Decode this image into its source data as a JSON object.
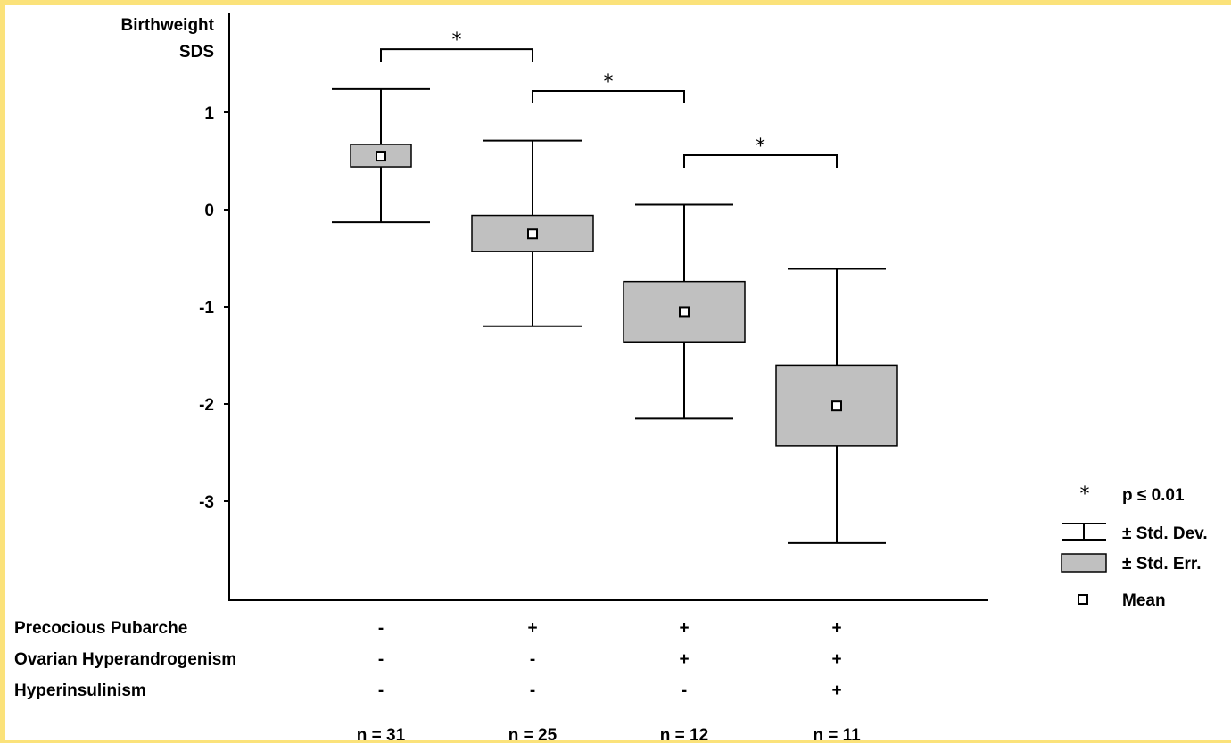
{
  "chart_data": {
    "type": "box",
    "ylabel": [
      "Birthweight",
      "SDS"
    ],
    "ylim": [
      -3.8,
      2.0
    ],
    "yticks": [
      1,
      0,
      -1,
      -2,
      -3
    ],
    "ytick_labels": [
      "1",
      "0",
      "-1",
      "-2",
      "-3"
    ],
    "groups": [
      {
        "mean": 0.55,
        "se_low": 0.44,
        "se_high": 0.67,
        "sd_low": -0.13,
        "sd_high": 1.24,
        "n_label": "n = 31",
        "factors": [
          "-",
          "-",
          "-"
        ]
      },
      {
        "mean": -0.25,
        "se_low": -0.43,
        "se_high": -0.06,
        "sd_low": -1.2,
        "sd_high": 0.71,
        "n_label": "n = 25",
        "factors": [
          "+",
          "-",
          "-"
        ]
      },
      {
        "mean": -1.05,
        "se_low": -1.36,
        "se_high": -0.74,
        "sd_low": -2.15,
        "sd_high": 0.05,
        "n_label": "n = 12",
        "factors": [
          "+",
          "+",
          "-"
        ]
      },
      {
        "mean": -2.02,
        "se_low": -2.43,
        "se_high": -1.6,
        "sd_low": -3.43,
        "sd_high": -0.61,
        "n_label": "n = 11",
        "factors": [
          "+",
          "+",
          "+"
        ]
      }
    ],
    "factor_labels": [
      "Precocious Pubarche",
      "Ovarian Hyperandrogenism",
      "Hyperinsulinism"
    ],
    "significance": [
      {
        "from": 0,
        "to": 1,
        "level": 1.65,
        "label": "*"
      },
      {
        "from": 1,
        "to": 2,
        "level": 1.22,
        "label": "*"
      },
      {
        "from": 2,
        "to": 3,
        "level": 0.56,
        "label": "*"
      }
    ],
    "legend": {
      "position": "right",
      "items": [
        {
          "symbol": "star",
          "label": "p  ≤  0.01"
        },
        {
          "symbol": "whisker",
          "label": "± Std. Dev."
        },
        {
          "symbol": "box",
          "label": "± Std. Err."
        },
        {
          "symbol": "mean",
          "label": "Mean"
        }
      ]
    },
    "colors": {
      "box_fill": "#c0c0c0",
      "line": "#000000",
      "frame": "#fbe27a"
    }
  }
}
